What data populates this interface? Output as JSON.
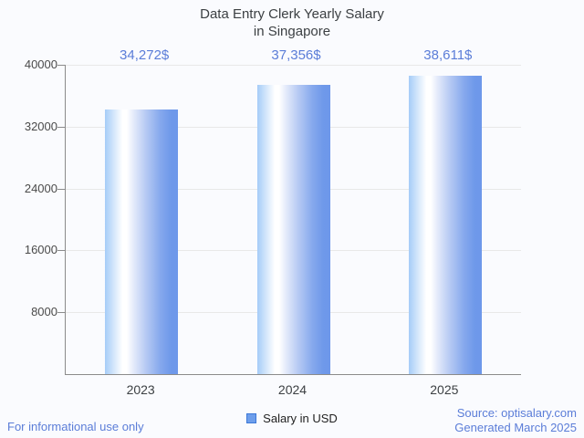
{
  "title": {
    "line1": "Data Entry Clerk Yearly Salary",
    "line2": "in Singapore"
  },
  "legend": {
    "label": "Salary in USD"
  },
  "footer": {
    "left": "For informational use only",
    "source": "Source: optisalary.com",
    "generated": "Generated March 2025"
  },
  "colors": {
    "value_label_blue": "#5b7dd8",
    "footer_blue": "#5b7dd8",
    "bar_edge_light": "#a5ccf8",
    "bar_highlight": "#ffffff",
    "bar_edge_dark": "#6f99ea",
    "legend_swatch": "#6d9eeb",
    "title_gray": "#3c4043",
    "gridline": "#e8e8e8",
    "axis": "#8b8b8b",
    "background": "#fafbfe"
  },
  "chart_data": {
    "type": "bar",
    "title": "Data Entry Clerk Yearly Salary in Singapore",
    "categories": [
      "2023",
      "2024",
      "2025"
    ],
    "values": [
      34272,
      37356,
      38611
    ],
    "value_labels": [
      "34,272$",
      "37,356$",
      "38,611$"
    ],
    "series_name": "Salary in USD",
    "xlabel": "",
    "ylabel": "",
    "ylim": [
      0,
      40000
    ],
    "yticks": [
      8000,
      16000,
      24000,
      32000,
      40000
    ],
    "grid": true,
    "legend_position": "bottom",
    "bar_style": "horizontal-gradient-cylinder"
  }
}
